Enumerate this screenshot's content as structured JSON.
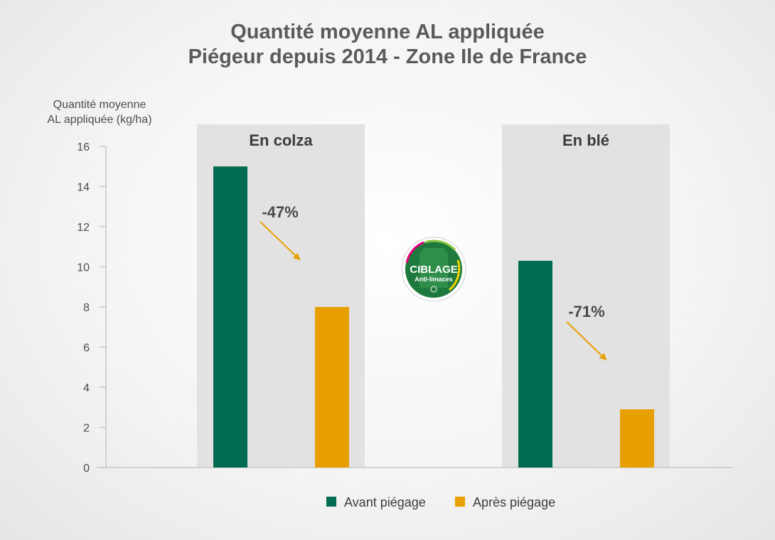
{
  "title_line1": "Quantité moyenne AL appliquée",
  "title_line2": "Piégeur depuis 2014 - Zone Ile de France",
  "logo": {
    "line1": "CIBLAGE",
    "line2": "Anti-limaces"
  },
  "colors": {
    "avant": "#006b4f",
    "apres": "#e8a000",
    "panel": "#e2e2e2",
    "arrow": "#e8a000",
    "text": "#4d4d4d"
  },
  "chart_data": {
    "type": "bar",
    "ylabel_line1": "Quantité moyenne",
    "ylabel_line2": "AL appliquée (kg/ha)",
    "ylim": [
      0,
      16
    ],
    "yticks": [
      0,
      2,
      4,
      6,
      8,
      10,
      12,
      14,
      16
    ],
    "grid": false,
    "legend_position": "bottom",
    "categories": [
      "En colza",
      "En blé"
    ],
    "series": [
      {
        "name": "Avant piégage",
        "values": [
          15.0,
          10.3
        ]
      },
      {
        "name": "Après piégage",
        "values": [
          8.0,
          2.9
        ]
      }
    ],
    "annotations": [
      "-47%",
      "-71%"
    ]
  }
}
